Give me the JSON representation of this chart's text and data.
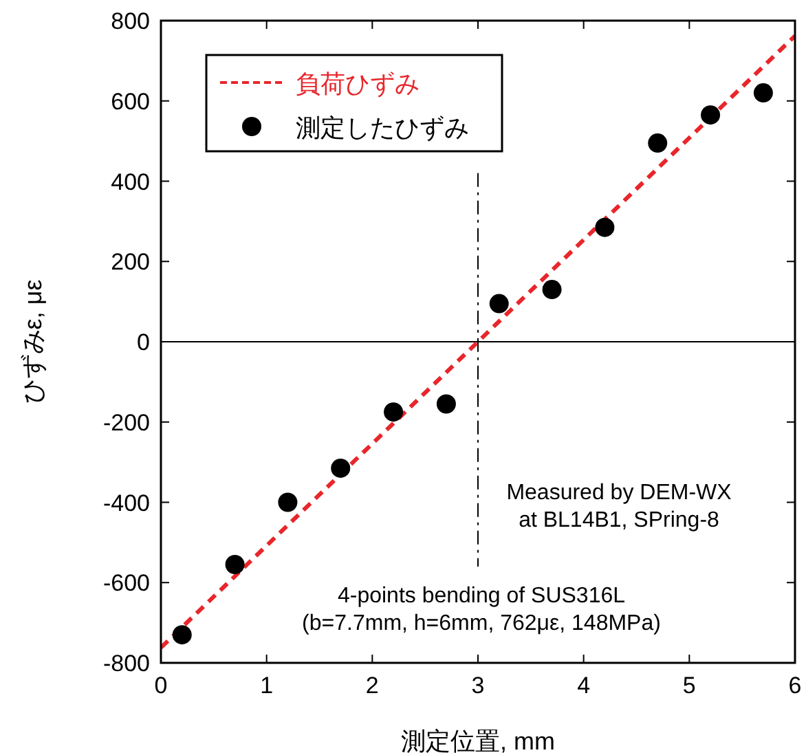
{
  "chart_data": {
    "type": "scatter",
    "xlabel": "測定位置, mm",
    "ylabel": "ひずみε, με",
    "xlim": [
      0,
      6
    ],
    "xticks": [
      0,
      1,
      2,
      3,
      4,
      5,
      6
    ],
    "ylim": [
      -800,
      800
    ],
    "yticks": [
      -800,
      -600,
      -400,
      -200,
      0,
      200,
      400,
      600,
      800
    ],
    "grid": false,
    "legend": "top left",
    "series": [
      {
        "name": "負荷ひずみ",
        "type": "line",
        "line_style": "dashed",
        "color": "#e8262b",
        "x": [
          0,
          6
        ],
        "values": [
          -762,
          762
        ]
      },
      {
        "name": "測定したひずみ",
        "type": "scatter",
        "marker": "circle",
        "color": "#000000",
        "x": [
          0.2,
          0.7,
          1.2,
          1.7,
          2.2,
          2.7,
          3.2,
          3.7,
          4.2,
          4.7,
          5.2,
          5.7
        ],
        "values": [
          -730,
          -555,
          -400,
          -315,
          -175,
          -155,
          95,
          130,
          285,
          495,
          565,
          620
        ]
      }
    ],
    "ref_lines": [
      {
        "axis": "y",
        "value": 0,
        "color": "#000000",
        "line_style": "solid"
      },
      {
        "axis": "x",
        "value": 3,
        "color": "#000000",
        "line_style": "dashdot"
      }
    ],
    "annotations": [
      "Measured by DEM-WX\nat BL14B1, SPring-8",
      "4-points bending of SUS316L\n(b=7.7mm, h=6mm, 762με, 148MPa)"
    ]
  }
}
